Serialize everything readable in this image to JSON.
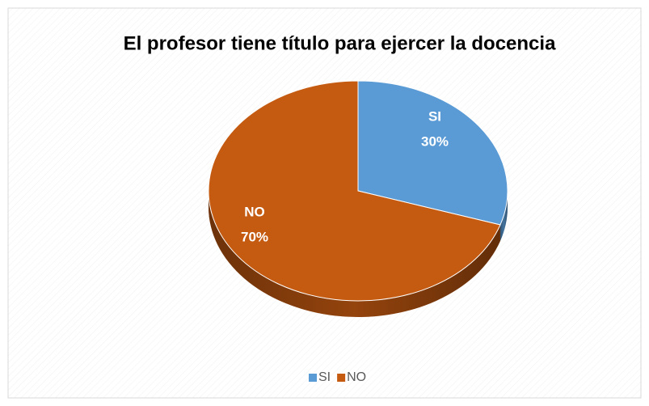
{
  "chart_data": {
    "type": "pie",
    "title": "El profesor tiene título para ejercer la docencia",
    "categories": [
      "SI",
      "NO"
    ],
    "values": [
      30,
      70
    ],
    "value_labels": [
      "30%",
      "70%"
    ],
    "colors": [
      "#5b9bd5",
      "#c55a11"
    ],
    "legend": "bottom"
  }
}
